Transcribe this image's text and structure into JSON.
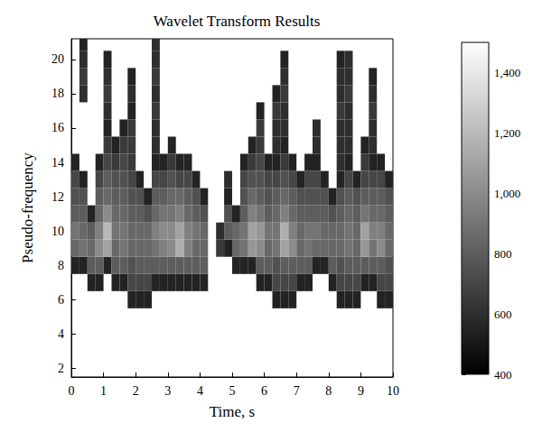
{
  "chart_data": {
    "type": "heatmap",
    "title": "Wavelet Transform Results",
    "x_label": "Time, s",
    "y_label": "Pseudo-frequency",
    "xlim": [
      0,
      10
    ],
    "xticks": [
      0,
      1,
      2,
      3,
      4,
      5,
      6,
      7,
      8,
      9,
      10
    ],
    "ylim": [
      1.5,
      21.2
    ],
    "yticks": [
      2,
      4,
      6,
      8,
      10,
      12,
      14,
      16,
      18,
      20
    ],
    "grid": false,
    "colorbar": {
      "lim": [
        400,
        1500
      ],
      "ticks": [
        400,
        600,
        800,
        1000,
        1200,
        1400
      ]
    },
    "x": [
      0.125,
      0.375,
      0.625,
      0.875,
      1.125,
      1.375,
      1.625,
      1.875,
      2.125,
      2.375,
      2.625,
      2.875,
      3.125,
      3.375,
      3.625,
      3.875,
      4.125,
      4.375,
      4.625,
      4.875,
      5.125,
      5.375,
      5.625,
      5.875,
      6.125,
      6.375,
      6.625,
      6.875,
      7.125,
      7.375,
      7.625,
      7.875,
      8.125,
      8.375,
      8.625,
      8.875,
      9.125,
      9.375,
      9.625,
      9.875
    ],
    "y": [
      6,
      7,
      8,
      9,
      10,
      11,
      12,
      13,
      14,
      15,
      16,
      17,
      18,
      19,
      20,
      21
    ],
    "values": [
      [
        null,
        null,
        null,
        null,
        null,
        null,
        null,
        550,
        550,
        550,
        null,
        null,
        null,
        null,
        null,
        null,
        null,
        null,
        null,
        null,
        null,
        null,
        null,
        null,
        null,
        550,
        550,
        550,
        null,
        null,
        null,
        null,
        null,
        550,
        550,
        550,
        null,
        null,
        550,
        550
      ],
      [
        null,
        null,
        550,
        550,
        null,
        550,
        550,
        700,
        700,
        700,
        550,
        550,
        550,
        550,
        550,
        550,
        550,
        null,
        null,
        null,
        null,
        null,
        null,
        550,
        550,
        700,
        700,
        700,
        550,
        550,
        null,
        null,
        550,
        700,
        700,
        700,
        550,
        550,
        700,
        700
      ],
      [
        550,
        550,
        800,
        800,
        550,
        800,
        800,
        750,
        800,
        800,
        800,
        800,
        800,
        800,
        800,
        800,
        800,
        null,
        null,
        null,
        550,
        550,
        550,
        800,
        800,
        750,
        800,
        800,
        800,
        800,
        550,
        550,
        800,
        750,
        800,
        800,
        800,
        800,
        800,
        750
      ],
      [
        850,
        900,
        850,
        1000,
        1100,
        850,
        900,
        850,
        850,
        850,
        900,
        950,
        1000,
        1150,
        950,
        850,
        850,
        null,
        650,
        550,
        850,
        900,
        1050,
        1000,
        850,
        900,
        1100,
        1000,
        850,
        900,
        850,
        850,
        850,
        850,
        900,
        850,
        1050,
        900,
        1000,
        850
      ],
      [
        900,
        850,
        800,
        950,
        1200,
        900,
        900,
        850,
        850,
        850,
        950,
        1000,
        1000,
        1100,
        950,
        900,
        850,
        null,
        600,
        800,
        850,
        900,
        1100,
        1050,
        900,
        900,
        1150,
        950,
        850,
        900,
        900,
        850,
        850,
        850,
        900,
        850,
        1100,
        950,
        950,
        850
      ],
      [
        800,
        800,
        550,
        850,
        1000,
        850,
        850,
        800,
        800,
        750,
        850,
        900,
        900,
        950,
        850,
        800,
        750,
        null,
        null,
        750,
        550,
        800,
        950,
        900,
        800,
        850,
        950,
        850,
        800,
        800,
        800,
        800,
        750,
        800,
        850,
        800,
        900,
        850,
        850,
        800
      ],
      [
        750,
        750,
        null,
        800,
        850,
        800,
        800,
        750,
        750,
        550,
        800,
        800,
        850,
        850,
        800,
        750,
        550,
        null,
        null,
        550,
        null,
        750,
        850,
        800,
        750,
        800,
        850,
        800,
        750,
        750,
        750,
        750,
        550,
        750,
        800,
        750,
        800,
        800,
        800,
        750
      ],
      [
        700,
        550,
        null,
        700,
        800,
        750,
        750,
        700,
        550,
        null,
        700,
        700,
        750,
        700,
        700,
        550,
        null,
        null,
        null,
        600,
        null,
        700,
        750,
        750,
        700,
        700,
        750,
        700,
        550,
        700,
        700,
        550,
        null,
        550,
        700,
        550,
        700,
        700,
        700,
        550
      ],
      [
        550,
        null,
        null,
        550,
        700,
        650,
        700,
        650,
        null,
        null,
        550,
        550,
        650,
        550,
        550,
        null,
        null,
        null,
        null,
        null,
        null,
        550,
        650,
        700,
        550,
        550,
        650,
        550,
        null,
        550,
        550,
        null,
        null,
        600,
        550,
        null,
        650,
        550,
        550,
        null
      ],
      [
        null,
        null,
        null,
        null,
        650,
        550,
        650,
        650,
        null,
        null,
        600,
        null,
        550,
        null,
        null,
        null,
        null,
        null,
        null,
        null,
        null,
        null,
        550,
        650,
        null,
        600,
        550,
        null,
        null,
        null,
        600,
        null,
        null,
        600,
        600,
        null,
        550,
        600,
        null,
        null
      ],
      [
        null,
        null,
        null,
        null,
        550,
        null,
        550,
        650,
        null,
        null,
        600,
        null,
        null,
        null,
        null,
        null,
        null,
        null,
        null,
        null,
        null,
        null,
        null,
        650,
        null,
        600,
        600,
        null,
        null,
        null,
        600,
        null,
        null,
        600,
        600,
        null,
        null,
        600,
        null,
        null
      ],
      [
        null,
        null,
        null,
        null,
        600,
        null,
        null,
        550,
        null,
        null,
        650,
        null,
        null,
        null,
        null,
        null,
        null,
        null,
        null,
        null,
        null,
        null,
        null,
        550,
        null,
        650,
        600,
        null,
        null,
        null,
        null,
        null,
        null,
        650,
        600,
        null,
        null,
        650,
        null,
        null
      ],
      [
        null,
        600,
        null,
        null,
        650,
        null,
        null,
        600,
        null,
        null,
        600,
        null,
        null,
        null,
        null,
        null,
        null,
        null,
        null,
        null,
        null,
        null,
        null,
        null,
        null,
        550,
        650,
        null,
        null,
        null,
        null,
        null,
        null,
        600,
        650,
        null,
        null,
        600,
        null,
        null
      ],
      [
        null,
        650,
        null,
        null,
        600,
        null,
        null,
        550,
        null,
        null,
        650,
        null,
        null,
        null,
        null,
        null,
        null,
        null,
        null,
        null,
        null,
        null,
        null,
        null,
        null,
        null,
        600,
        null,
        null,
        null,
        null,
        null,
        null,
        600,
        600,
        null,
        null,
        550,
        null,
        null
      ],
      [
        null,
        600,
        null,
        null,
        550,
        null,
        null,
        null,
        null,
        null,
        600,
        null,
        null,
        null,
        null,
        null,
        null,
        null,
        null,
        null,
        null,
        null,
        null,
        null,
        null,
        null,
        550,
        null,
        null,
        null,
        null,
        null,
        null,
        550,
        600,
        null,
        null,
        null,
        null,
        null
      ],
      [
        null,
        550,
        null,
        null,
        null,
        null,
        null,
        null,
        null,
        null,
        600,
        null,
        null,
        null,
        null,
        null,
        null,
        null,
        null,
        null,
        null,
        null,
        null,
        null,
        null,
        null,
        null,
        null,
        null,
        null,
        null,
        null,
        null,
        null,
        null,
        null,
        null,
        null,
        null,
        null
      ]
    ]
  }
}
